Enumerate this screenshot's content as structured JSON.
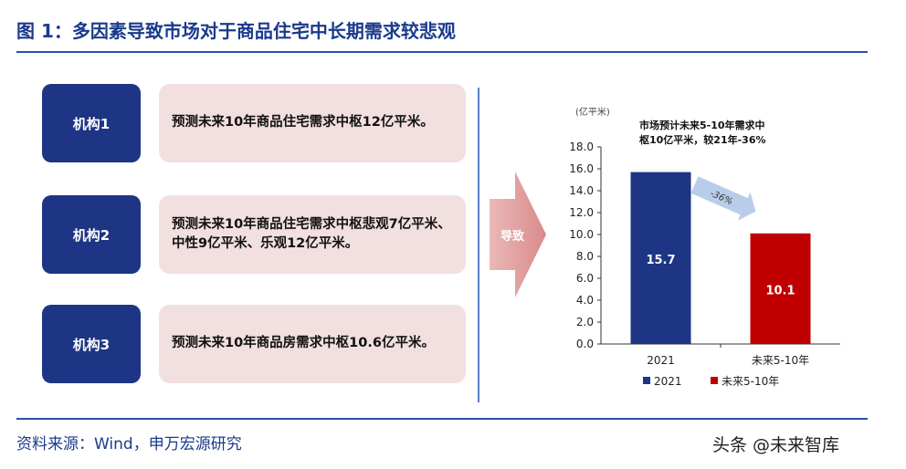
{
  "title": "图 1：多因素导致市场对于商品住宅中长期需求较悲观",
  "source": "资料来源：Wind，申万宏源研究",
  "watermark": "头条 @未来智库",
  "arrow_label": "导致",
  "institutions": [
    {
      "name": "机构1",
      "desc": "预测未来10年商品住宅需求中枢12亿平米。"
    },
    {
      "name": "机构2",
      "desc": "预测未来10年商品住宅需求中枢悲观7亿平米、中性9亿平米、乐观12亿平米。"
    },
    {
      "name": "机构3",
      "desc": "预测未来10年商品房需求中枢10.6亿平米。"
    }
  ],
  "chart_data": {
    "type": "bar",
    "unit_label": "(亿平米)",
    "annotation": "市场预计未来5-10年需求中枢10亿平米，较21年-36%",
    "arrow_annotation": "-36%",
    "categories": [
      "2021",
      "未来5-10年"
    ],
    "values": [
      15.7,
      10.1
    ],
    "value_labels": [
      "15.7",
      "10.1"
    ],
    "series": [
      {
        "name": "2021",
        "color": "#1d3584"
      },
      {
        "name": "未来5-10年",
        "color": "#c00000"
      }
    ],
    "ylim": [
      0,
      18
    ],
    "yticks": [
      "0.0",
      "2.0",
      "4.0",
      "6.0",
      "8.0",
      "10.0",
      "12.0",
      "14.0",
      "16.0",
      "18.0"
    ],
    "grid": false,
    "legend": "bottom"
  }
}
